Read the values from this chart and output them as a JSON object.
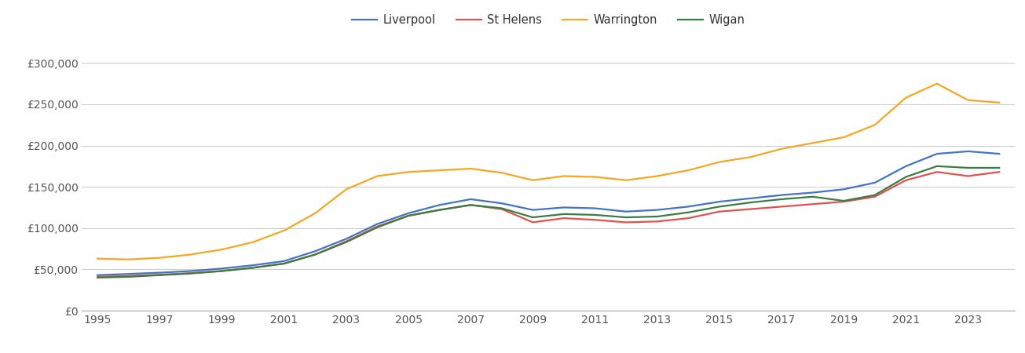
{
  "years": [
    1995,
    1996,
    1997,
    1998,
    1999,
    2000,
    2001,
    2002,
    2003,
    2004,
    2005,
    2006,
    2007,
    2008,
    2009,
    2010,
    2011,
    2012,
    2013,
    2014,
    2015,
    2016,
    2017,
    2018,
    2019,
    2020,
    2021,
    2022,
    2023,
    2024
  ],
  "liverpool": [
    43000,
    44500,
    46000,
    48000,
    51000,
    55000,
    60000,
    72000,
    87000,
    105000,
    118000,
    128000,
    135000,
    130000,
    122000,
    125000,
    124000,
    120000,
    122000,
    126000,
    132000,
    136000,
    140000,
    143000,
    147000,
    155000,
    175000,
    190000,
    193000,
    190000
  ],
  "st_helens": [
    41000,
    42000,
    43500,
    45500,
    48000,
    52000,
    57000,
    68000,
    84000,
    102000,
    115000,
    122000,
    128000,
    123000,
    107000,
    112000,
    110000,
    107000,
    108000,
    112000,
    120000,
    123000,
    126000,
    129000,
    132000,
    138000,
    158000,
    168000,
    163000,
    168000
  ],
  "warrington": [
    63000,
    62000,
    64000,
    68000,
    74000,
    83000,
    97000,
    118000,
    147000,
    163000,
    168000,
    170000,
    172000,
    167000,
    158000,
    163000,
    162000,
    158000,
    163000,
    170000,
    180000,
    186000,
    196000,
    203000,
    210000,
    225000,
    258000,
    275000,
    255000,
    252000
  ],
  "wigan": [
    40000,
    41000,
    43000,
    45000,
    48000,
    52000,
    57000,
    68000,
    83000,
    101000,
    115000,
    122000,
    128000,
    124000,
    113000,
    117000,
    116000,
    113000,
    114000,
    119000,
    126000,
    131000,
    135000,
    138000,
    133000,
    140000,
    162000,
    175000,
    173000,
    173000
  ],
  "colors": {
    "liverpool": "#4472c4",
    "st_helens": "#e05252",
    "warrington": "#f5a623",
    "wigan": "#3a7d44"
  },
  "ylim": [
    0,
    325000
  ],
  "yticks": [
    0,
    50000,
    100000,
    150000,
    200000,
    250000,
    300000
  ],
  "xticks": [
    1995,
    1997,
    1999,
    2001,
    2003,
    2005,
    2007,
    2009,
    2011,
    2013,
    2015,
    2017,
    2019,
    2021,
    2023
  ],
  "xlim": [
    1994.5,
    2024.5
  ],
  "background_color": "#ffffff",
  "grid_color": "#cccccc",
  "line_width": 1.6,
  "tick_label_color": "#555555",
  "tick_fontsize": 10,
  "legend_fontsize": 10.5
}
